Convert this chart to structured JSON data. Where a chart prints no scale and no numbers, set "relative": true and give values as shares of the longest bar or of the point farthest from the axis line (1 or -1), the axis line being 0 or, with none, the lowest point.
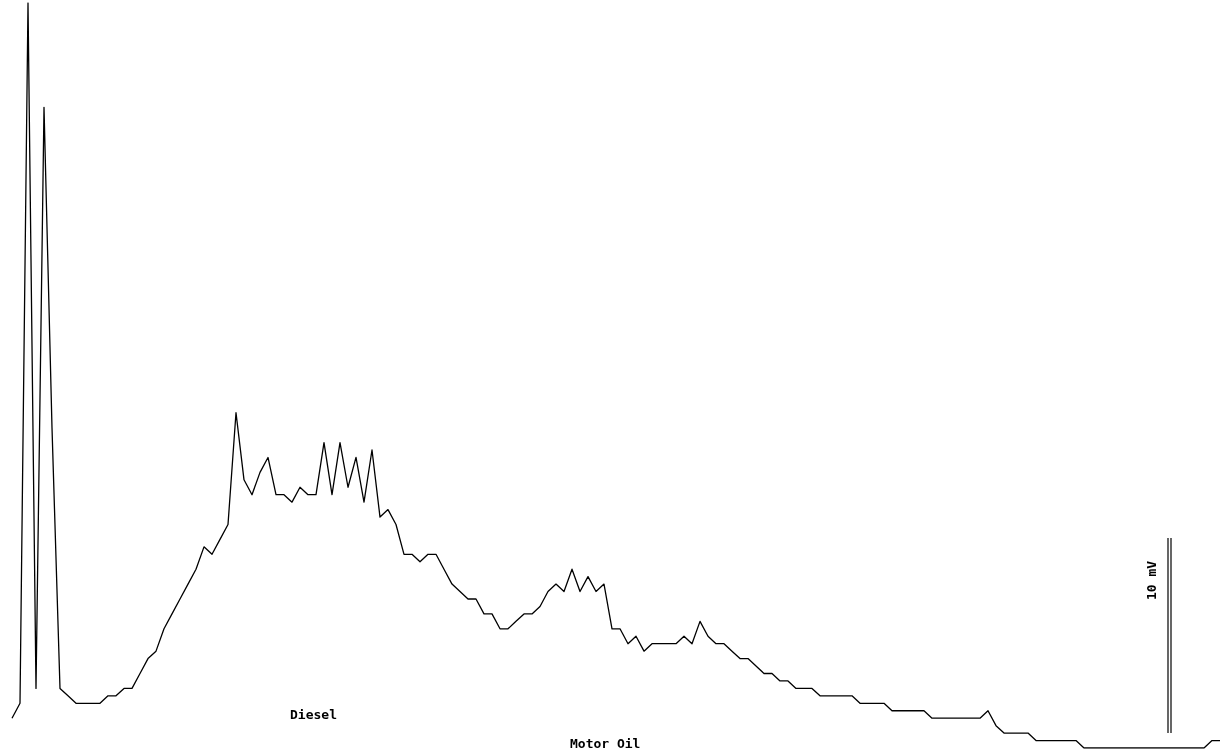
{
  "chart_data": {
    "type": "line",
    "relative": true,
    "color": "#000000",
    "categories": [
      null,
      null,
      null,
      null,
      null,
      null,
      null,
      null,
      null,
      null,
      null,
      null,
      null,
      null,
      null,
      null,
      null,
      null,
      null,
      null,
      null,
      null,
      null,
      null,
      null,
      null,
      null,
      null,
      null,
      null,
      null,
      null,
      null,
      null,
      null,
      null,
      null,
      null,
      null,
      null,
      null,
      null,
      null,
      null,
      null,
      null,
      null,
      null,
      null,
      null,
      null,
      null,
      null,
      null,
      null,
      null,
      null,
      null,
      null,
      null,
      null,
      null,
      null,
      null,
      null,
      null,
      null,
      null,
      null,
      null,
      null,
      null,
      null,
      null,
      null,
      null,
      null,
      null,
      null,
      null,
      null,
      null,
      null,
      null,
      null,
      null,
      null,
      null,
      null,
      null,
      null,
      null,
      null,
      null,
      null,
      null,
      null,
      null,
      null,
      null,
      null,
      null,
      null,
      null,
      null,
      null,
      null,
      null,
      null,
      null,
      null,
      null,
      null,
      null,
      null,
      null,
      null,
      null,
      null,
      null,
      null,
      null,
      null,
      null,
      null,
      null,
      null,
      null,
      null,
      null,
      null,
      null,
      null,
      null,
      null,
      null,
      null,
      null,
      null,
      null,
      null,
      null,
      null,
      null,
      null,
      null,
      null,
      null,
      null,
      null,
      null,
      null
    ],
    "values": [
      0.04,
      0.06,
      1,
      0.08,
      0.86,
      0.43,
      0.08,
      0.07,
      0.06,
      0.06,
      0.06,
      0.06,
      0.07,
      0.07,
      0.08,
      0.08,
      0.1,
      0.12,
      0.13,
      0.16,
      0.18,
      0.2,
      0.22,
      0.24,
      0.27,
      0.26,
      0.28,
      0.3,
      0.45,
      0.36,
      0.34,
      0.37,
      0.39,
      0.34,
      0.34,
      0.33,
      0.35,
      0.34,
      0.34,
      0.41,
      0.34,
      0.41,
      0.35,
      0.39,
      0.33,
      0.4,
      0.31,
      0.32,
      0.3,
      0.26,
      0.26,
      0.25,
      0.26,
      0.26,
      0.24,
      0.22,
      0.21,
      0.2,
      0.2,
      0.18,
      0.18,
      0.16,
      0.16,
      0.17,
      0.18,
      0.18,
      0.19,
      0.21,
      0.22,
      0.21,
      0.24,
      0.21,
      0.23,
      0.21,
      0.22,
      0.16,
      0.16,
      0.14,
      0.15,
      0.13,
      0.14,
      0.14,
      0.14,
      0.14,
      0.15,
      0.14,
      0.17,
      0.15,
      0.14,
      0.14,
      0.13,
      0.12,
      0.12,
      0.11,
      0.1,
      0.1,
      0.09,
      0.09,
      0.08,
      0.08,
      0.08,
      0.07,
      0.07,
      0.07,
      0.07,
      0.07,
      0.06,
      0.06,
      0.06,
      0.06,
      0.05,
      0.05,
      0.05,
      0.05,
      0.05,
      0.04,
      0.04,
      0.04,
      0.04,
      0.04,
      0.04,
      0.04,
      0.05,
      0.03,
      0.02,
      0.02,
      0.02,
      0.02,
      0.01,
      0.01,
      0.01,
      0.01,
      0.01,
      0.01,
      0,
      0,
      0,
      0,
      0,
      0,
      0,
      0,
      0,
      0,
      0,
      0,
      0,
      0,
      0,
      0,
      0.01,
      0.01
    ],
    "annotations": [
      "Diesel",
      "Motor Oil",
      "10 mV"
    ]
  }
}
